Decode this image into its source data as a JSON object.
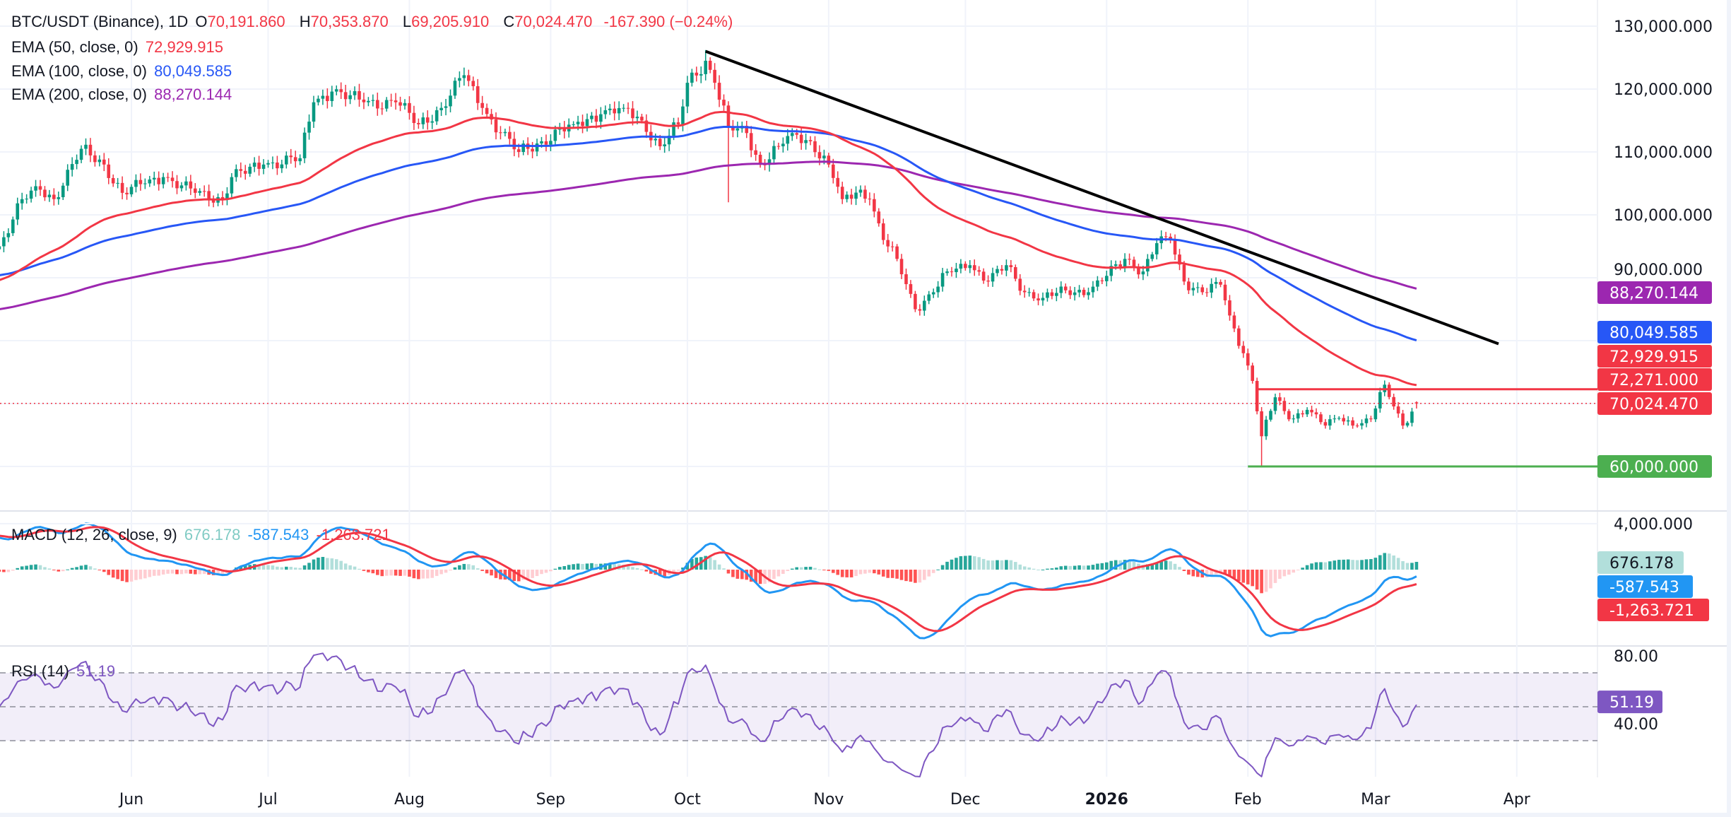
{
  "header": {
    "symbol": "BTC/USDT (Binance), 1D",
    "open_label": "O",
    "open": "70,191.860",
    "high_label": "H",
    "high": "70,353.870",
    "low_label": "L",
    "low": "69,205.910",
    "close_label": "C",
    "close": "70,024.470",
    "change": "-167.390 (−0.24%)"
  },
  "indicators": {
    "ema50": {
      "label": "EMA (50, close, 0)",
      "value": "72,929.915",
      "color": "#f23645"
    },
    "ema100": {
      "label": "EMA (100, close, 0)",
      "value": "80,049.585",
      "color": "#2757f6"
    },
    "ema200": {
      "label": "EMA (200, close, 0)",
      "value": "88,270.144",
      "color": "#9c27b0"
    },
    "macd": {
      "label": "MACD (12, 26, close, 9)",
      "hist": "676.178",
      "macd": "-587.543",
      "signal": "-1,263.721"
    },
    "rsi": {
      "label": "RSI (14)",
      "value": "51.19"
    }
  },
  "chart_data": {
    "type": "candlestick",
    "title": "BTC/USDT (Binance), 1D",
    "x_unit": "days from Jun 1 2025",
    "x_ticks": [
      {
        "label": "Jun",
        "day": 0
      },
      {
        "label": "Jul",
        "day": 30
      },
      {
        "label": "Aug",
        "day": 61
      },
      {
        "label": "Sep",
        "day": 92
      },
      {
        "label": "Oct",
        "day": 122
      },
      {
        "label": "Nov",
        "day": 153
      },
      {
        "label": "Dec",
        "day": 183
      },
      {
        "label": "2026",
        "day": 214
      },
      {
        "label": "Feb",
        "day": 245
      },
      {
        "label": "Mar",
        "day": 273
      },
      {
        "label": "Apr",
        "day": 304
      }
    ],
    "y_ticks": [
      {
        "label": "130,000.000",
        "value": 130000
      },
      {
        "label": "120,000.000",
        "value": 120000
      },
      {
        "label": "110,000.000",
        "value": 110000
      },
      {
        "label": "100,000.000",
        "value": 100000
      },
      {
        "label": "90,000.000",
        "value": 90000
      }
    ],
    "ylim": [
      55000,
      134000
    ],
    "close_anchors": [
      [
        -29,
        95000
      ],
      [
        -24,
        102500
      ],
      [
        -20,
        104000
      ],
      [
        -17,
        102500
      ],
      [
        -11,
        110500
      ],
      [
        -6,
        108000
      ],
      [
        -2,
        103500
      ],
      [
        3,
        105000
      ],
      [
        7,
        106000
      ],
      [
        14,
        103500
      ],
      [
        20,
        102500
      ],
      [
        22,
        106000
      ],
      [
        29,
        108000
      ],
      [
        37,
        109000
      ],
      [
        40,
        117900
      ],
      [
        44,
        119600
      ],
      [
        51,
        117900
      ],
      [
        58,
        117900
      ],
      [
        63,
        114400
      ],
      [
        68,
        117000
      ],
      [
        73,
        122200
      ],
      [
        77,
        117000
      ],
      [
        81,
        113000
      ],
      [
        85,
        110000
      ],
      [
        90,
        111700
      ],
      [
        97,
        114400
      ],
      [
        103,
        116000
      ],
      [
        108,
        117000
      ],
      [
        112,
        115000
      ],
      [
        116,
        110900
      ],
      [
        120,
        114400
      ],
      [
        122,
        121000
      ],
      [
        126,
        124500
      ],
      [
        128,
        121000
      ],
      [
        131,
        114000
      ],
      [
        135,
        113000
      ],
      [
        138,
        108000
      ],
      [
        142,
        110900
      ],
      [
        145,
        113000
      ],
      [
        149,
        111700
      ],
      [
        153,
        108000
      ],
      [
        156,
        102500
      ],
      [
        160,
        104000
      ],
      [
        162,
        102500
      ],
      [
        165,
        96000
      ],
      [
        168,
        93000
      ],
      [
        172,
        85000
      ],
      [
        176,
        87700
      ],
      [
        179,
        91000
      ],
      [
        184,
        92000
      ],
      [
        188,
        89400
      ],
      [
        192,
        92000
      ],
      [
        196,
        87700
      ],
      [
        200,
        86800
      ],
      [
        205,
        88000
      ],
      [
        210,
        87700
      ],
      [
        214,
        90300
      ],
      [
        218,
        93000
      ],
      [
        222,
        91000
      ],
      [
        225,
        95500
      ],
      [
        228,
        96000
      ],
      [
        231,
        89400
      ],
      [
        235,
        87700
      ],
      [
        239,
        88900
      ],
      [
        241,
        84000
      ],
      [
        244,
        78000
      ],
      [
        246,
        73600
      ],
      [
        248,
        64800
      ],
      [
        251,
        71000
      ],
      [
        254,
        67500
      ],
      [
        258,
        69000
      ],
      [
        262,
        66500
      ],
      [
        265,
        67700
      ],
      [
        269,
        66500
      ],
      [
        272,
        67500
      ],
      [
        275,
        73000
      ],
      [
        279,
        66500
      ],
      [
        282,
        70024.47
      ]
    ],
    "last_candle": {
      "open": 70191.86,
      "high": 70353.87,
      "low": 69205.91,
      "close": 70024.47
    },
    "ema_start": {
      "ema50": 89400,
      "ema100": 90300,
      "ema200": 84900
    },
    "ema_last": {
      "ema50": 72929.915,
      "ema100": 80049.585,
      "ema200": 88270.144
    },
    "trendline": {
      "from": {
        "day": 126,
        "price": 126000
      },
      "to": {
        "day": 300,
        "price": 79500
      },
      "color": "#000000"
    },
    "resistance": {
      "price": 72271,
      "label": "72,271.000",
      "from_day": 247,
      "color": "#f23645"
    },
    "support": {
      "price": 60000,
      "label": "60,000.000",
      "from_day": 245,
      "color": "#4caf50"
    },
    "price_line": {
      "price": 70024.47,
      "label": "70,024.470"
    },
    "macd_pane": {
      "tick_label": "4,000.000",
      "tick_value": 4000,
      "last": {
        "hist": 676.178,
        "macd": -587.543,
        "signal": -1263.721
      }
    },
    "rsi_pane": {
      "ticks": [
        {
          "label": "80.00",
          "value": 80
        },
        {
          "label": "40.00",
          "value": 40
        }
      ],
      "band": [
        30,
        70
      ],
      "mid": 50,
      "last": 51.19
    }
  }
}
